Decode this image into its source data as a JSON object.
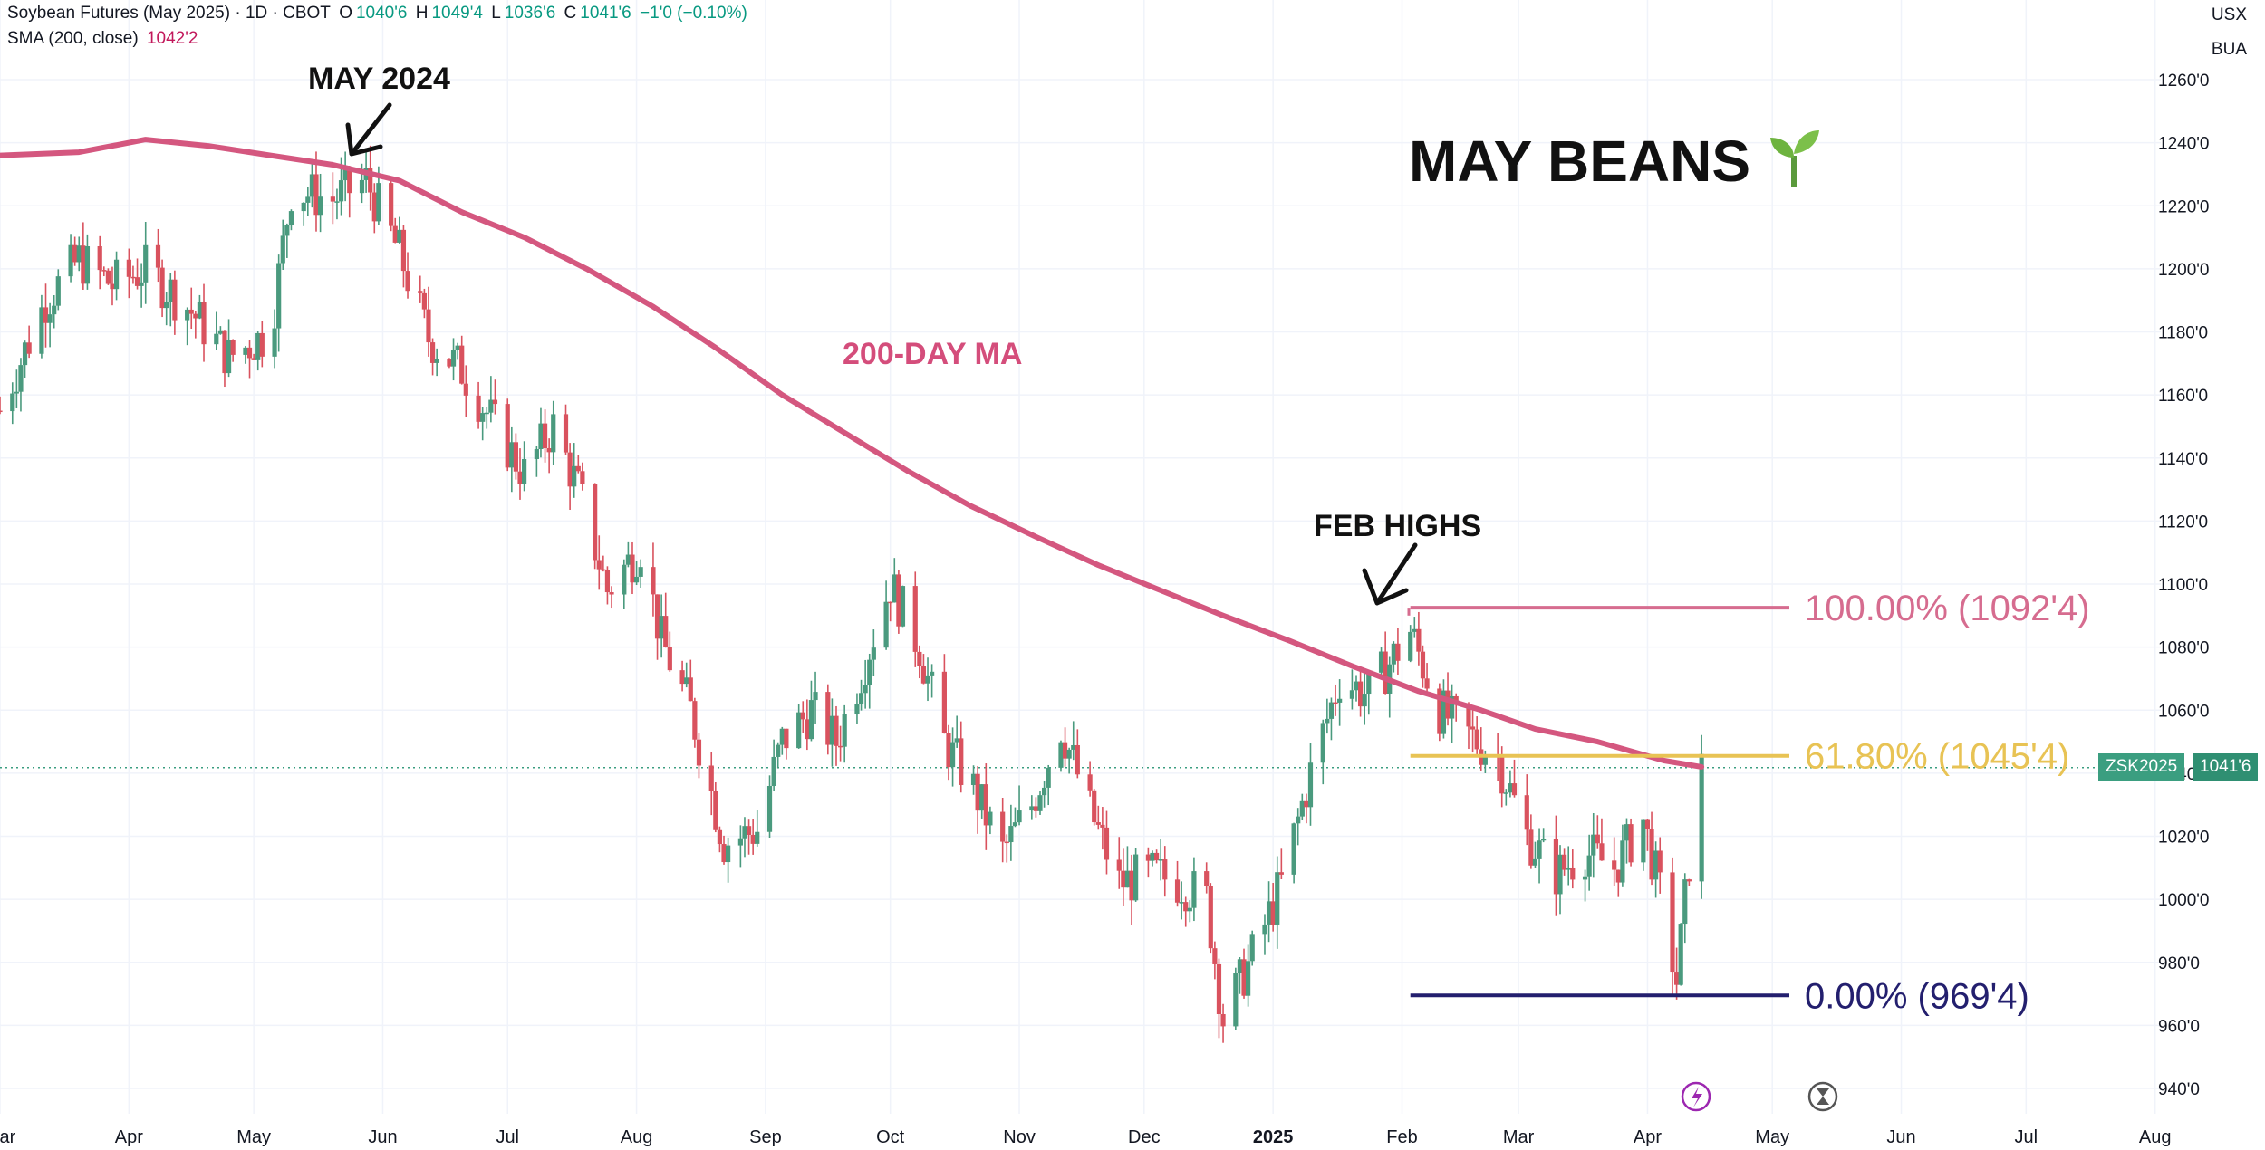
{
  "legend": {
    "symbol": "Soybean Futures (May 2025) · 1D · CBOT",
    "open_label": "O",
    "open": "1040'6",
    "high_label": "H",
    "high": "1049'4",
    "low_label": "L",
    "low": "1036'6",
    "close_label": "C",
    "close": "1041'6",
    "change": "−1'0 (−0.10%)",
    "sma_label": "SMA (200, close)",
    "sma_value": "1042'2"
  },
  "corner": {
    "currency": "USX",
    "unit": "BUA"
  },
  "annotations": {
    "may2024": "MAY 2024",
    "title": "MAY BEANS",
    "ma_label": "200-DAY MA",
    "feb_highs": "FEB HIGHS"
  },
  "price_tag": {
    "symbol": "ZSK2025",
    "value": "1041'6"
  },
  "colors": {
    "up": "#4a9a7e",
    "down": "#d9525e",
    "sma": "#d4577f",
    "fib100": "#d66c8f",
    "fib618": "#e8c354",
    "fib0": "#231f6e",
    "tag": "#3b9e80",
    "grid": "#f0f3fa"
  },
  "chart_data": {
    "type": "candlestick",
    "y_range": [
      930,
      1270
    ],
    "y_ticks": [
      "1260'0",
      "1240'0",
      "1220'0",
      "1200'0",
      "1180'0",
      "1160'0",
      "1140'0",
      "1120'0",
      "1100'0",
      "1080'0",
      "1060'0",
      "1040'0",
      "1020'0",
      "1000'0",
      "980'0",
      "960'0",
      "940'0"
    ],
    "y_tick_values": [
      1260,
      1240,
      1220,
      1200,
      1180,
      1160,
      1140,
      1120,
      1100,
      1080,
      1060,
      1040,
      1020,
      1000,
      980,
      960,
      940
    ],
    "x_labels": [
      "Mar",
      "Apr",
      "May",
      "Jun",
      "Jul",
      "Aug",
      "Sep",
      "Oct",
      "Nov",
      "Dec",
      "2025",
      "Feb",
      "Mar",
      "Apr",
      "May",
      "Jun",
      "Jul",
      "Aug"
    ],
    "x_label_dates": [
      "2024-03-01",
      "2024-04-01",
      "2024-05-01",
      "2024-06-01",
      "2024-07-01",
      "2024-08-01",
      "2024-09-01",
      "2024-10-01",
      "2024-11-01",
      "2024-12-01",
      "2025-01-01",
      "2025-02-01",
      "2025-03-01",
      "2025-04-01",
      "2025-05-01",
      "2025-06-01",
      "2025-07-01",
      "2025-08-01"
    ],
    "x_range": [
      "2024-03-01",
      "2025-08-10"
    ],
    "last_price": 1041.75,
    "fib_levels": [
      {
        "label": "100.00% (1092'4)",
        "value": 1092.5,
        "start": "2025-02-03",
        "end": "2025-05-01"
      },
      {
        "label": "61.80% (1045'4)",
        "value": 1045.5,
        "start": "2025-02-03",
        "end": "2025-05-01"
      },
      {
        "label": "0.00% (969'4)",
        "value": 969.5,
        "start": "2025-02-03",
        "end": "2025-05-01"
      }
    ],
    "sma": [
      [
        "2024-03-01",
        1236
      ],
      [
        "2024-03-20",
        1237
      ],
      [
        "2024-04-05",
        1241
      ],
      [
        "2024-04-20",
        1239
      ],
      [
        "2024-05-05",
        1236
      ],
      [
        "2024-05-20",
        1233
      ],
      [
        "2024-06-05",
        1228
      ],
      [
        "2024-06-20",
        1218
      ],
      [
        "2024-07-05",
        1210
      ],
      [
        "2024-07-20",
        1200
      ],
      [
        "2024-08-05",
        1188
      ],
      [
        "2024-08-20",
        1175
      ],
      [
        "2024-09-05",
        1160
      ],
      [
        "2024-09-20",
        1148
      ],
      [
        "2024-10-05",
        1136
      ],
      [
        "2024-10-20",
        1125
      ],
      [
        "2024-11-05",
        1115
      ],
      [
        "2024-11-20",
        1106
      ],
      [
        "2024-12-05",
        1098
      ],
      [
        "2024-12-20",
        1090
      ],
      [
        "2025-01-05",
        1082
      ],
      [
        "2025-01-20",
        1074
      ],
      [
        "2025-02-05",
        1066
      ],
      [
        "2025-02-20",
        1060
      ],
      [
        "2025-03-05",
        1054
      ],
      [
        "2025-03-20",
        1050
      ],
      [
        "2025-04-05",
        1044
      ],
      [
        "2025-04-14",
        1042
      ]
    ],
    "price_path": [
      [
        "2024-03-01",
        1155
      ],
      [
        "2024-03-12",
        1190
      ],
      [
        "2024-03-20",
        1203
      ],
      [
        "2024-03-28",
        1195
      ],
      [
        "2024-04-05",
        1200
      ],
      [
        "2024-04-15",
        1188
      ],
      [
        "2024-04-25",
        1172
      ],
      [
        "2024-05-05",
        1180
      ],
      [
        "2024-05-10",
        1225
      ],
      [
        "2024-05-20",
        1222
      ],
      [
        "2024-05-28",
        1228
      ],
      [
        "2024-06-05",
        1205
      ],
      [
        "2024-06-12",
        1178
      ],
      [
        "2024-06-20",
        1168
      ],
      [
        "2024-06-28",
        1150
      ],
      [
        "2024-07-05",
        1135
      ],
      [
        "2024-07-12",
        1150
      ],
      [
        "2024-07-18",
        1130
      ],
      [
        "2024-07-25",
        1098
      ],
      [
        "2024-08-02",
        1112
      ],
      [
        "2024-08-07",
        1082
      ],
      [
        "2024-08-14",
        1060
      ],
      [
        "2024-08-22",
        1018
      ],
      [
        "2024-08-30",
        1022
      ],
      [
        "2024-09-05",
        1050
      ],
      [
        "2024-09-12",
        1060
      ],
      [
        "2024-09-18",
        1050
      ],
      [
        "2024-09-24",
        1072
      ],
      [
        "2024-10-01",
        1100
      ],
      [
        "2024-10-08",
        1080
      ],
      [
        "2024-10-14",
        1050
      ],
      [
        "2024-10-21",
        1035
      ],
      [
        "2024-10-28",
        1015
      ],
      [
        "2024-11-04",
        1030
      ],
      [
        "2024-11-11",
        1055
      ],
      [
        "2024-11-18",
        1028
      ],
      [
        "2024-11-25",
        1005
      ],
      [
        "2024-12-03",
        1008
      ],
      [
        "2024-12-10",
        1005
      ],
      [
        "2024-12-16",
        1000
      ],
      [
        "2024-12-20",
        962
      ],
      [
        "2024-12-27",
        982
      ],
      [
        "2025-01-03",
        1005
      ],
      [
        "2025-01-10",
        1040
      ],
      [
        "2025-01-17",
        1070
      ],
      [
        "2025-01-24",
        1065
      ],
      [
        "2025-02-03",
        1085
      ],
      [
        "2025-02-10",
        1060
      ],
      [
        "2025-02-17",
        1052
      ],
      [
        "2025-02-24",
        1045
      ],
      [
        "2025-03-03",
        1020
      ],
      [
        "2025-03-10",
        1008
      ],
      [
        "2025-03-17",
        1015
      ],
      [
        "2025-03-24",
        1010
      ],
      [
        "2025-03-31",
        1025
      ],
      [
        "2025-04-04",
        1002
      ],
      [
        "2025-04-08",
        974
      ],
      [
        "2025-04-11",
        1012
      ],
      [
        "2025-04-14",
        1041.75
      ]
    ]
  }
}
